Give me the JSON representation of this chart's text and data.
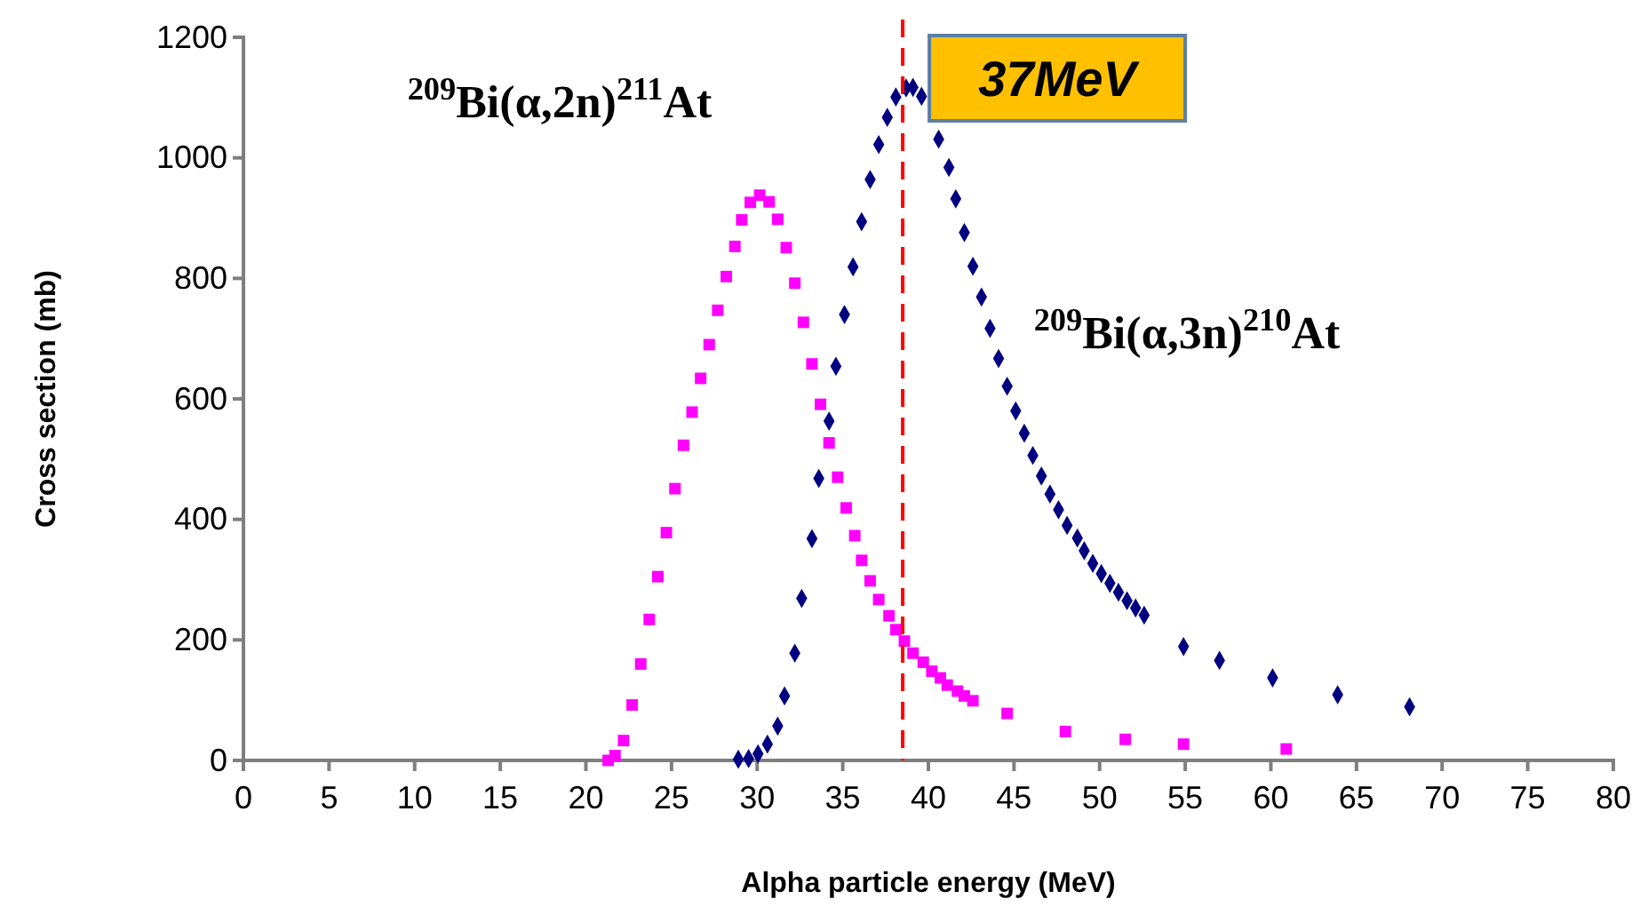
{
  "chart_data": {
    "type": "scatter",
    "xlabel": "Alpha particle energy (MeV)",
    "ylabel": "Cross section (mb)",
    "xlim": [
      0,
      80
    ],
    "xticks": [
      0,
      5,
      10,
      15,
      20,
      25,
      30,
      35,
      40,
      45,
      50,
      55,
      60,
      65,
      70,
      75,
      80
    ],
    "ylim": [
      0,
      1200
    ],
    "yticks": [
      0,
      200,
      400,
      600,
      800,
      1000,
      1200
    ],
    "grid": false,
    "series": [
      {
        "name": "$^{209}$Bi(α,2n)$^{211}$At",
        "color": "#ff00ff",
        "marker": "square",
        "x": [
          21.3,
          21.7,
          22.2,
          22.7,
          23.2,
          23.7,
          24.2,
          24.7,
          25.2,
          25.7,
          26.2,
          26.7,
          27.2,
          27.7,
          28.2,
          28.7,
          29.1,
          29.6,
          30.15,
          30.7,
          31.2,
          31.7,
          32.2,
          32.7,
          33.2,
          33.7,
          34.2,
          34.7,
          35.2,
          35.7,
          36.1,
          36.6,
          37.1,
          37.7,
          38.1,
          38.6,
          39.1,
          39.7,
          40.2,
          40.7,
          41.1,
          41.7,
          42.1,
          42.6,
          44.6,
          48,
          51.5,
          54.9,
          60.9
        ],
        "values": [
          0,
          8,
          33,
          92,
          160,
          234,
          305,
          378,
          451,
          523,
          578,
          634,
          690,
          747,
          803,
          853,
          897,
          926,
          938,
          927,
          898,
          851,
          792,
          727,
          658,
          591,
          527,
          470,
          419,
          373,
          332,
          298,
          267,
          240,
          217,
          198,
          178,
          163,
          148,
          137,
          125,
          115,
          107,
          99,
          78,
          48,
          35,
          27,
          19
        ]
      },
      {
        "name": "$^{209}$Bi(α,3n)$^{210}$At",
        "color": "#000080",
        "marker": "diamond",
        "x": [
          28.9,
          29.5,
          30.05,
          30.6,
          31.2,
          31.6,
          32.2,
          32.6,
          33.2,
          33.6,
          34.2,
          34.6,
          35.1,
          35.6,
          36.1,
          36.6,
          37.1,
          37.6,
          38.1,
          38.7,
          39.1,
          39.6,
          40.6,
          41.2,
          41.6,
          42.1,
          42.6,
          43.1,
          43.6,
          44.1,
          44.6,
          45.1,
          45.6,
          46.1,
          46.6,
          47.1,
          47.6,
          48.1,
          48.7,
          49.1,
          49.6,
          50.1,
          50.6,
          51.1,
          51.6,
          52.1,
          52.6,
          54.9,
          57,
          60.1,
          63.9,
          68.1
        ],
        "values": [
          2,
          3,
          11,
          27,
          57,
          107,
          178,
          269,
          368,
          468,
          563,
          654,
          740,
          819,
          894,
          964,
          1022,
          1067,
          1101,
          1116,
          1117,
          1102,
          1031,
          984,
          932,
          876,
          820,
          769,
          717,
          667,
          621,
          580,
          543,
          506,
          472,
          442,
          416,
          390,
          369,
          348,
          327,
          310,
          294,
          279,
          265,
          253,
          241,
          189,
          166,
          137,
          109,
          89
        ]
      }
    ],
    "ref_lines": [
      {
        "axis": "x",
        "value": 38.5,
        "label": "37MeV",
        "color": "#ff0000",
        "line_style": "dashed"
      }
    ]
  }
}
